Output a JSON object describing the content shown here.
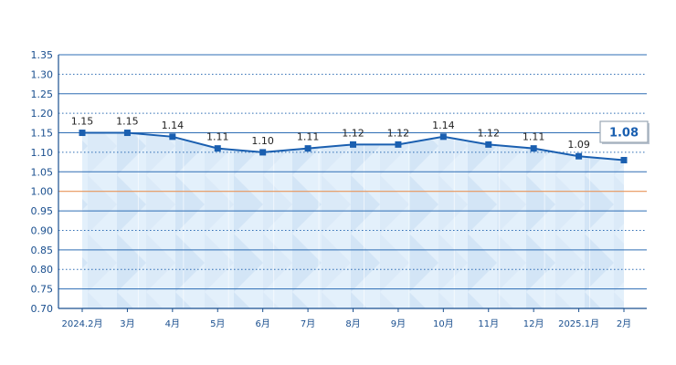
{
  "chart_data": {
    "type": "line",
    "categories": [
      "2024.2月",
      "3月",
      "4月",
      "5月",
      "6月",
      "7月",
      "8月",
      "9月",
      "10月",
      "11月",
      "12月",
      "2025.1月",
      "2月"
    ],
    "series": [
      {
        "values": [
          1.15,
          1.15,
          1.14,
          1.11,
          1.1,
          1.11,
          1.12,
          1.12,
          1.14,
          1.12,
          1.11,
          1.09,
          1.08
        ]
      }
    ],
    "data_labels": [
      "1.15",
      "1.15",
      "1.14",
      "1.11",
      "1.10",
      "1.11",
      "1.12",
      "1.12",
      "1.14",
      "1.12",
      "1.11",
      "1.09",
      "1.08"
    ],
    "ylim": [
      0.7,
      1.35
    ],
    "yticks": [
      "0.70",
      "0.75",
      "0.80",
      "0.85",
      "0.90",
      "0.95",
      "1.00",
      "1.05",
      "1.10",
      "1.15",
      "1.20",
      "1.25",
      "1.30",
      "1.35"
    ],
    "reference_line": 1.0,
    "callout": "1.08",
    "grid": true,
    "colors": {
      "line": "#1a5fb0",
      "axis": "#1a4f8f",
      "grid_solid": "#2e6db4",
      "grid_dotted": "#2e6db4",
      "reference": "#e8955a",
      "fill_light": "#e4f1fb",
      "fill_dark": "#c9ddf3"
    }
  }
}
